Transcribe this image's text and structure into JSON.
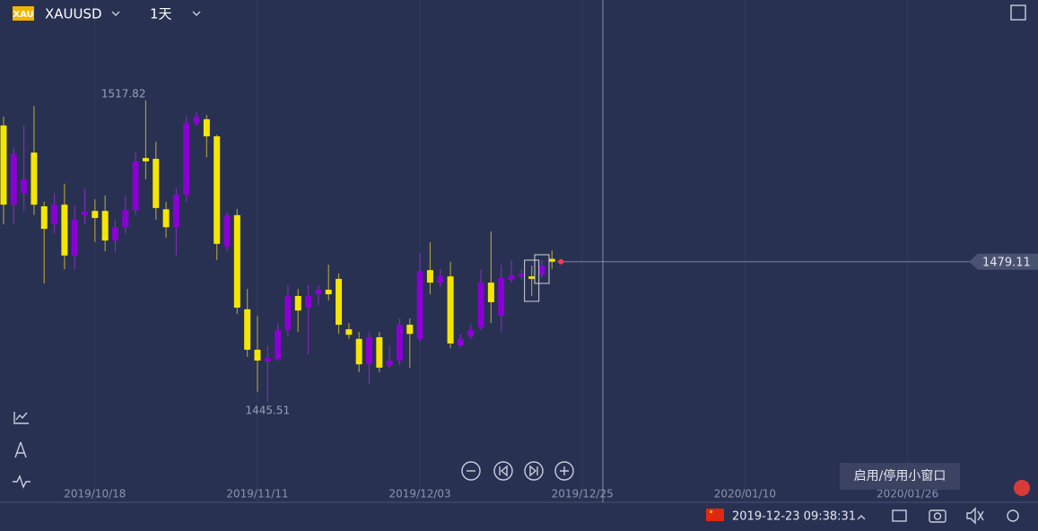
{
  "toolbar": {
    "logo": "XAU",
    "symbol": "XAUUSD",
    "period": "1天"
  },
  "status": {
    "datetime": "2019-12-23 09:38:31",
    "tooltip": "启用/停用小窗口"
  },
  "chart_data": {
    "type": "candlestick",
    "up_color": "#8a00d4",
    "down_color": "#f5e600",
    "xlim": [
      -0.35,
      101.85
    ],
    "ylim": [
      1421.4,
      1541.9
    ],
    "xticks": [
      {
        "value": 9,
        "label": "2019/10/18"
      },
      {
        "value": 25,
        "label": "2019/11/11"
      },
      {
        "value": 41,
        "label": "2019/12/03"
      },
      {
        "value": 57,
        "label": "2019/12/25"
      },
      {
        "value": 73,
        "label": "2020/01/10"
      },
      {
        "value": 89,
        "label": "2020/01/26"
      }
    ],
    "grid": true,
    "open": [
      1511.8,
      1492.8,
      1495.6,
      1505.3,
      1492.4,
      1488.1,
      1492.8,
      1480.6,
      1490.3,
      1491.3,
      1491.3,
      1484.2,
      1487.4,
      1491.5,
      1504.0,
      1503.8,
      1491.7,
      1487.4,
      1495.2,
      1512.4,
      1513.3,
      1509.2,
      1482.7,
      1490.3,
      1467.7,
      1458.0,
      1455.2,
      1455.8,
      1462.7,
      1470.9,
      1468.1,
      1471.3,
      1472.4,
      1475.0,
      1462.9,
      1460.6,
      1454.5,
      1461.0,
      1454.1,
      1455.4,
      1464.0,
      1460.6,
      1477.1,
      1474.1,
      1475.6,
      1459.0,
      1461.2,
      1463.3,
      1474.1,
      1466.2,
      1474.8,
      1475.6,
      1475.6,
      1476.0,
      1479.8
    ],
    "high": [
      1513.9,
      1506.4,
      1511.8,
      1516.5,
      1493.5,
      1495.6,
      1497.8,
      1492.4,
      1496.7,
      1494.1,
      1495.0,
      1489.2,
      1495.0,
      1505.3,
      1517.82,
      1507.9,
      1493.5,
      1496.7,
      1513.9,
      1515.0,
      1514.3,
      1509.6,
      1491.1,
      1491.8,
      1472.6,
      1466.1,
      1459.0,
      1464.4,
      1473.5,
      1472.6,
      1473.5,
      1473.5,
      1478.4,
      1476.3,
      1464.4,
      1462.3,
      1462.3,
      1462.3,
      1459.0,
      1465.5,
      1465.5,
      1481.2,
      1483.8,
      1477.3,
      1479.1,
      1461.8,
      1464.0,
      1477.3,
      1486.4,
      1478.4,
      1479.5,
      1477.3,
      1478.2,
      1479.5,
      1481.8
    ],
    "low": [
      1488.1,
      1488.1,
      1491.3,
      1490.3,
      1473.9,
      1485.9,
      1477.3,
      1477.3,
      1488.1,
      1483.8,
      1481.6,
      1481.2,
      1485.9,
      1490.3,
      1498.9,
      1489.2,
      1484.9,
      1480.6,
      1493.5,
      1511.8,
      1504.2,
      1479.5,
      1481.6,
      1466.6,
      1456.3,
      1447.9,
      1445.51,
      1455.4,
      1461.2,
      1462.3,
      1456.9,
      1468.7,
      1469.8,
      1461.8,
      1460.6,
      1452.6,
      1449.8,
      1452.6,
      1453.7,
      1454.3,
      1453.7,
      1460.1,
      1471.3,
      1473.0,
      1458.4,
      1458.4,
      1460.6,
      1462.7,
      1464.4,
      1462.3,
      1474.1,
      1474.8,
      1470.9,
      1475.2,
      1477.4
    ],
    "close": [
      1492.8,
      1504.9,
      1498.9,
      1492.8,
      1487.0,
      1492.8,
      1480.6,
      1489.2,
      1491.1,
      1489.6,
      1484.2,
      1487.4,
      1491.5,
      1503.2,
      1503.2,
      1492.0,
      1487.4,
      1495.2,
      1512.4,
      1513.9,
      1509.2,
      1483.4,
      1490.3,
      1468.1,
      1458.0,
      1455.4,
      1456.0,
      1462.7,
      1470.9,
      1467.4,
      1470.9,
      1472.4,
      1471.3,
      1464.0,
      1461.6,
      1454.5,
      1461.0,
      1453.7,
      1455.4,
      1464.0,
      1461.8,
      1476.9,
      1474.1,
      1475.6,
      1459.5,
      1460.6,
      1462.7,
      1474.1,
      1469.4,
      1475.2,
      1475.9,
      1476.3,
      1475.0,
      1478.2,
      1479.11
    ]
  }
}
